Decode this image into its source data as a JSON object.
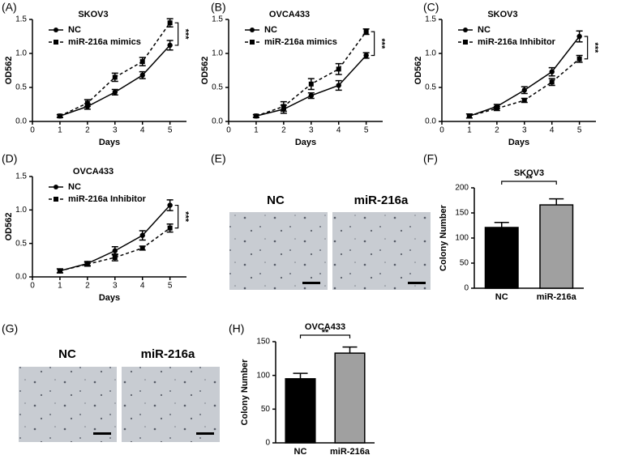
{
  "chart_data": [
    {
      "type": "line",
      "panel": "(A)",
      "title": "SKOV3",
      "xlabel": "Days",
      "ylabel": "OD562",
      "x": [
        1,
        2,
        3,
        4,
        5
      ],
      "xlim": [
        0,
        5.6
      ],
      "xticks": [
        0,
        1,
        2,
        3,
        4,
        5
      ],
      "ylim": [
        0,
        1.5
      ],
      "yticks": [
        {
          "value": 0,
          "label": "0.0"
        },
        0.5,
        {
          "value": 1,
          "label": "1.0"
        },
        1.5
      ],
      "series": [
        {
          "name": "NC",
          "color": "#000000",
          "linestyle": "solid",
          "marker": "circle",
          "values": [
            0.08,
            0.22,
            0.43,
            0.68,
            1.12
          ],
          "errors": [
            0.02,
            0.04,
            0.04,
            0.05,
            0.07
          ]
        },
        {
          "name": "miR-216a mimics",
          "color": "#000000",
          "linestyle": "dashed",
          "marker": "square",
          "values": [
            0.08,
            0.27,
            0.65,
            0.88,
            1.45
          ],
          "errors": [
            0.02,
            0.05,
            0.06,
            0.06,
            0.06
          ]
        }
      ],
      "annotation": "***"
    },
    {
      "type": "line",
      "panel": "(B)",
      "title": "OVCA433",
      "xlabel": "Days",
      "ylabel": "OD562",
      "x": [
        1,
        2,
        3,
        4,
        5
      ],
      "xlim": [
        0,
        5.6
      ],
      "xticks": [
        0,
        1,
        2,
        3,
        4,
        5
      ],
      "ylim": [
        0,
        1.5
      ],
      "yticks": [
        {
          "value": 0,
          "label": "0.0"
        },
        0.5,
        {
          "value": 1,
          "label": "1.0"
        },
        1.5
      ],
      "series": [
        {
          "name": "NC",
          "color": "#000000",
          "linestyle": "solid",
          "marker": "circle",
          "values": [
            0.08,
            0.18,
            0.38,
            0.53,
            0.97
          ],
          "errors": [
            0.02,
            0.06,
            0.04,
            0.07,
            0.04
          ]
        },
        {
          "name": "miR-216a mimics",
          "color": "#000000",
          "linestyle": "dashed",
          "marker": "square",
          "values": [
            0.08,
            0.22,
            0.55,
            0.77,
            1.32
          ],
          "errors": [
            0.02,
            0.07,
            0.08,
            0.08,
            0.04
          ]
        }
      ],
      "annotation": "***"
    },
    {
      "type": "line",
      "panel": "(C)",
      "title": "SKOV3",
      "xlabel": "Days",
      "ylabel": "OD562",
      "x": [
        1,
        2,
        3,
        4,
        5
      ],
      "xlim": [
        0,
        5.6
      ],
      "xticks": [
        0,
        1,
        2,
        3,
        4,
        5
      ],
      "ylim": [
        0,
        1.5
      ],
      "yticks": [
        {
          "value": 0,
          "label": "0.0"
        },
        0.5,
        {
          "value": 1,
          "label": "1.0"
        },
        1.5
      ],
      "series": [
        {
          "name": "NC",
          "color": "#000000",
          "linestyle": "solid",
          "marker": "circle",
          "values": [
            0.08,
            0.22,
            0.46,
            0.73,
            1.25
          ],
          "errors": [
            0.03,
            0.03,
            0.05,
            0.06,
            0.08
          ]
        },
        {
          "name": "miR-216a Inhibitor",
          "color": "#000000",
          "linestyle": "dashed",
          "marker": "square",
          "values": [
            0.08,
            0.19,
            0.31,
            0.58,
            0.92
          ],
          "errors": [
            0.03,
            0.03,
            0.03,
            0.05,
            0.05
          ]
        }
      ],
      "annotation": "***"
    },
    {
      "type": "line",
      "panel": "(D)",
      "title": "OVCA433",
      "xlabel": "Days",
      "ylabel": "OD562",
      "x": [
        1,
        2,
        3,
        4,
        5
      ],
      "xlim": [
        0,
        5.6
      ],
      "xticks": [
        0,
        1,
        2,
        3,
        4,
        5
      ],
      "ylim": [
        0,
        1.5
      ],
      "yticks": [
        {
          "value": 0,
          "label": "0.0"
        },
        0.5,
        {
          "value": 1,
          "label": "1.0"
        },
        1.5
      ],
      "series": [
        {
          "name": "NC",
          "color": "#000000",
          "linestyle": "solid",
          "marker": "circle",
          "values": [
            0.09,
            0.2,
            0.39,
            0.62,
            1.07
          ],
          "errors": [
            0.03,
            0.03,
            0.06,
            0.07,
            0.08
          ]
        },
        {
          "name": "miR-216a Inhibitor",
          "color": "#000000",
          "linestyle": "dashed",
          "marker": "square",
          "values": [
            0.09,
            0.19,
            0.29,
            0.43,
            0.73
          ],
          "errors": [
            0.03,
            0.03,
            0.05,
            0.03,
            0.06
          ]
        }
      ],
      "annotation": "***"
    },
    {
      "type": "bar",
      "panel": "(F)",
      "title": "SKOV3",
      "ylabel": "Colony Number",
      "categories": [
        "NC",
        "miR-216a"
      ],
      "values": [
        121,
        166
      ],
      "errors": [
        10,
        12
      ],
      "colors": [
        "#000000",
        "#a0a0a0"
      ],
      "ylim": [
        0,
        200
      ],
      "yticks": [
        0,
        50,
        100,
        150,
        200
      ],
      "annotation": "**"
    },
    {
      "type": "bar",
      "panel": "(H)",
      "title": "OVCA433",
      "ylabel": "Colony Number",
      "categories": [
        "NC",
        "miR-216a"
      ],
      "values": [
        95,
        133
      ],
      "errors": [
        8,
        9
      ],
      "colors": [
        "#000000",
        "#a0a0a0"
      ],
      "ylim": [
        0,
        150
      ],
      "yticks": [
        0,
        50,
        100,
        150
      ],
      "annotation": "**"
    }
  ],
  "image_panels": [
    {
      "panel": "(E)",
      "labels": [
        "NC",
        "miR-216a"
      ]
    },
    {
      "panel": "(G)",
      "labels": [
        "NC",
        "miR-216a"
      ]
    }
  ]
}
